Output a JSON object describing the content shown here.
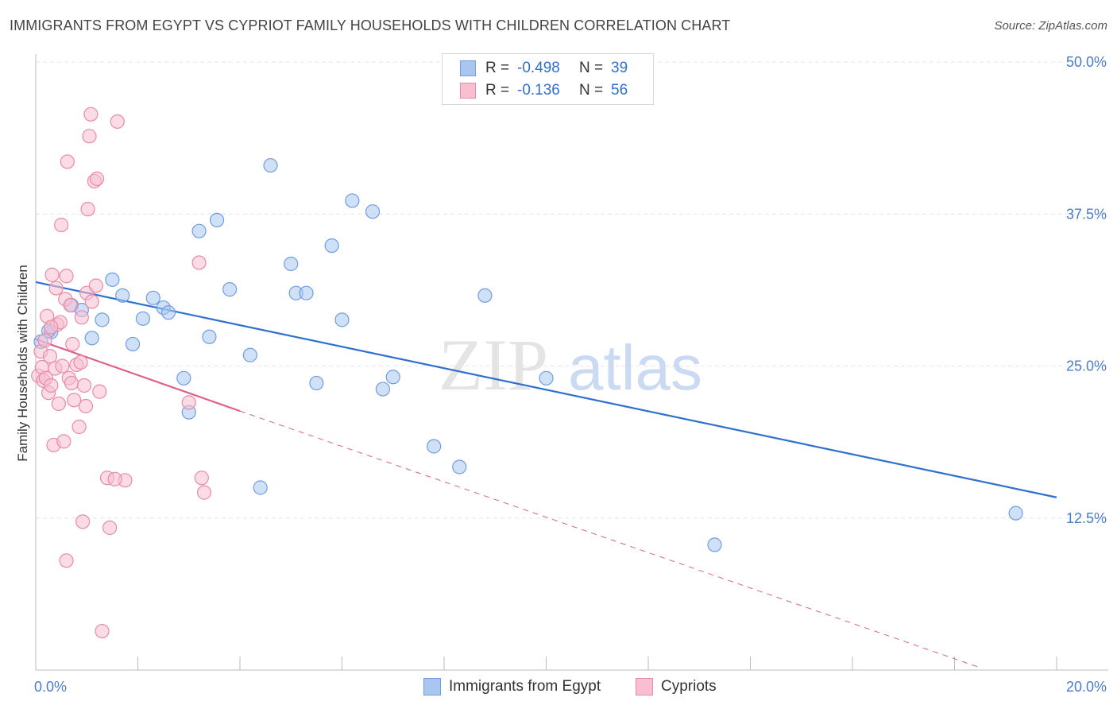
{
  "header": {
    "title": "IMMIGRANTS FROM EGYPT VS CYPRIOT FAMILY HOUSEHOLDS WITH CHILDREN CORRELATION CHART",
    "source": "Source: ZipAtlas.com"
  },
  "watermark": {
    "zip": "ZIP",
    "atlas": "atlas"
  },
  "legend": {
    "rows": [
      {
        "r_label": "R =",
        "r_value": "-0.498",
        "n_label": "N =",
        "n_value": "39",
        "color": "#a8c6f0",
        "border": "#6f9ee0"
      },
      {
        "r_label": "R =",
        "r_value": "-0.136",
        "n_label": "N =",
        "n_value": "56",
        "color": "#f7bfd0",
        "border": "#e98aa8"
      }
    ]
  },
  "bottom_legend": {
    "egypt_label": "Immigrants from Egypt",
    "cypriot_label": "Cypriots"
  },
  "chart_data": {
    "type": "scatter",
    "title": "IMMIGRANTS FROM EGYPT VS CYPRIOT FAMILY HOUSEHOLDS WITH CHILDREN CORRELATION CHART",
    "xlabel": "",
    "ylabel": "Family Households with Children",
    "xlim": [
      0,
      20
    ],
    "ylim": [
      0,
      50
    ],
    "x_tick_labels": [
      "0.0%",
      "20.0%"
    ],
    "y_ticks": [
      12.5,
      25.0,
      37.5,
      50.0
    ],
    "y_tick_labels": [
      "12.5%",
      "25.0%",
      "37.5%",
      "50.0%"
    ],
    "grid": true,
    "series": [
      {
        "name": "Immigrants from Egypt",
        "color": "#6f9ee0",
        "fill": "#a8c6f0",
        "points": [
          [
            0.1,
            27.0
          ],
          [
            0.3,
            27.8
          ],
          [
            0.7,
            30.0
          ],
          [
            0.9,
            29.6
          ],
          [
            1.1,
            27.3
          ],
          [
            1.3,
            28.8
          ],
          [
            1.5,
            32.1
          ],
          [
            1.7,
            30.8
          ],
          [
            1.9,
            26.8
          ],
          [
            2.1,
            28.9
          ],
          [
            2.3,
            30.6
          ],
          [
            2.5,
            29.8
          ],
          [
            2.6,
            29.4
          ],
          [
            2.9,
            24.0
          ],
          [
            3.0,
            21.2
          ],
          [
            3.2,
            36.1
          ],
          [
            3.4,
            27.4
          ],
          [
            3.55,
            37.0
          ],
          [
            3.8,
            31.3
          ],
          [
            4.2,
            25.9
          ],
          [
            4.4,
            15.0
          ],
          [
            4.6,
            41.5
          ],
          [
            5.0,
            33.4
          ],
          [
            5.1,
            31.0
          ],
          [
            5.3,
            31.0
          ],
          [
            5.5,
            23.6
          ],
          [
            5.8,
            34.9
          ],
          [
            6.0,
            28.8
          ],
          [
            6.2,
            38.6
          ],
          [
            6.6,
            37.7
          ],
          [
            6.8,
            23.1
          ],
          [
            7.0,
            24.1
          ],
          [
            7.8,
            18.4
          ],
          [
            8.3,
            16.7
          ],
          [
            8.8,
            30.8
          ],
          [
            10.0,
            24.0
          ],
          [
            13.3,
            10.3
          ],
          [
            19.2,
            12.9
          ],
          [
            0.25,
            27.9
          ]
        ]
      },
      {
        "name": "Cypriots",
        "color": "#e98aa8",
        "fill": "#f7bfd0",
        "points": [
          [
            0.05,
            24.2
          ],
          [
            0.1,
            26.2
          ],
          [
            0.12,
            24.9
          ],
          [
            0.15,
            23.8
          ],
          [
            0.18,
            27.1
          ],
          [
            0.2,
            24.0
          ],
          [
            0.22,
            29.1
          ],
          [
            0.25,
            22.8
          ],
          [
            0.28,
            25.8
          ],
          [
            0.3,
            23.4
          ],
          [
            0.32,
            32.5
          ],
          [
            0.35,
            18.5
          ],
          [
            0.38,
            24.8
          ],
          [
            0.4,
            31.4
          ],
          [
            0.42,
            28.4
          ],
          [
            0.45,
            21.9
          ],
          [
            0.48,
            28.6
          ],
          [
            0.5,
            36.6
          ],
          [
            0.52,
            25.0
          ],
          [
            0.55,
            18.8
          ],
          [
            0.58,
            30.5
          ],
          [
            0.6,
            32.4
          ],
          [
            0.62,
            41.8
          ],
          [
            0.65,
            24.0
          ],
          [
            0.68,
            30.0
          ],
          [
            0.7,
            23.6
          ],
          [
            0.72,
            26.8
          ],
          [
            0.8,
            25.1
          ],
          [
            0.85,
            20.0
          ],
          [
            0.88,
            25.3
          ],
          [
            0.9,
            29.0
          ],
          [
            0.92,
            12.2
          ],
          [
            0.95,
            23.4
          ],
          [
            0.98,
            21.7
          ],
          [
            1.0,
            31.0
          ],
          [
            1.02,
            37.9
          ],
          [
            1.05,
            43.9
          ],
          [
            1.08,
            45.7
          ],
          [
            1.1,
            30.3
          ],
          [
            1.15,
            40.2
          ],
          [
            1.18,
            31.6
          ],
          [
            1.2,
            40.4
          ],
          [
            1.25,
            22.9
          ],
          [
            1.3,
            3.2
          ],
          [
            1.4,
            15.8
          ],
          [
            1.45,
            11.7
          ],
          [
            1.6,
            45.1
          ],
          [
            1.75,
            15.6
          ],
          [
            3.0,
            22.0
          ],
          [
            3.2,
            33.5
          ],
          [
            3.25,
            15.8
          ],
          [
            3.3,
            14.6
          ],
          [
            0.6,
            9.0
          ],
          [
            0.3,
            28.2
          ],
          [
            1.55,
            15.7
          ],
          [
            0.75,
            22.2
          ]
        ]
      }
    ],
    "trend_lines": [
      {
        "series": "Immigrants from Egypt",
        "x": [
          0,
          20
        ],
        "y": [
          31.9,
          14.2
        ],
        "style": "solid"
      },
      {
        "series": "Cypriots",
        "x": [
          0,
          4.0
        ],
        "y": [
          27.2,
          21.3
        ],
        "style": "solid"
      },
      {
        "series": "Cypriots",
        "x": [
          4.0,
          18.5
        ],
        "y": [
          21.3,
          0.2
        ],
        "style": "dashed"
      }
    ]
  }
}
